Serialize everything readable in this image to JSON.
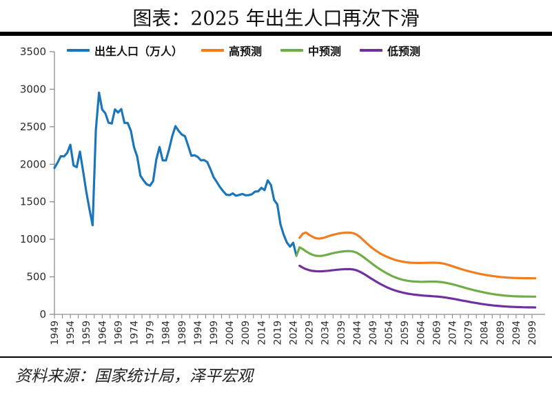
{
  "title": "图表：2025 年出生人口再次下滑",
  "source_note": "资料来源：国家统计局，泽平宏观",
  "colors": {
    "historical": "#1b75bb",
    "high_forecast": "#f07d1f",
    "mid_forecast": "#6fad46",
    "low_forecast": "#7030a0",
    "axis": "#8c8c8c",
    "rule": "#000000"
  },
  "chart_data": {
    "type": "line",
    "title": "图表：2025 年出生人口再次下滑",
    "xlabel": "",
    "ylabel": "",
    "grid": false,
    "legend_position": "top",
    "x_axis": {
      "min": 1949,
      "max": 2099,
      "label_step": 5,
      "minor_tick_step": 2.5,
      "tick_labels": [
        "1949",
        "1954",
        "1959",
        "1964",
        "1969",
        "1974",
        "1979",
        "1984",
        "1989",
        "1994",
        "1999",
        "2004",
        "2009",
        "2014",
        "2019",
        "2024",
        "2029",
        "2034",
        "2039",
        "2044",
        "2049",
        "2054",
        "2059",
        "2064",
        "2069",
        "2074",
        "2079",
        "2084",
        "2089",
        "2094",
        "2099"
      ]
    },
    "y_axis": {
      "min": 0,
      "max": 3500,
      "tick_step": 500,
      "tick_labels": [
        "0",
        "500",
        "1000",
        "1500",
        "2000",
        "2500",
        "3000",
        "3500"
      ]
    },
    "x_step_years": 1,
    "series": [
      {
        "name": "出生人口（万人）",
        "color": "#1b75bb",
        "start_year": 1949,
        "values": [
          1950,
          2023,
          2107,
          2105,
          2151,
          2260,
          1984,
          1961,
          2169,
          1909,
          1635,
          1402,
          1187,
          2460,
          2954,
          2729,
          2679,
          2554,
          2543,
          2731,
          2690,
          2736,
          2551,
          2550,
          2447,
          2226,
          2102,
          1849,
          1783,
          1733,
          1715,
          1776,
          2064,
          2230,
          2052,
          2050,
          2196,
          2374,
          2508,
          2445,
          2396,
          2374,
          2250,
          2113,
          2120,
          2098,
          2052,
          2057,
          2028,
          1934,
          1827,
          1765,
          1696,
          1641,
          1594,
          1588,
          1612,
          1581,
          1591,
          1604,
          1587,
          1588,
          1600,
          1635,
          1640,
          1687,
          1655,
          1786,
          1723,
          1523,
          1465,
          1200,
          1062,
          956,
          902,
          954,
          780
        ]
      },
      {
        "name": "高预测",
        "color": "#f07d1f",
        "start_year": 2026,
        "values": [
          1020,
          1075,
          1090,
          1060,
          1035,
          1015,
          1010,
          1015,
          1025,
          1040,
          1055,
          1065,
          1075,
          1082,
          1087,
          1090,
          1088,
          1080,
          1060,
          1030,
          990,
          950,
          912,
          878,
          848,
          820,
          795,
          775,
          757,
          740,
          726,
          714,
          705,
          698,
          692,
          688,
          686,
          685,
          685,
          686,
          687,
          688,
          688,
          687,
          684,
          678,
          668,
          655,
          641,
          627,
          613,
          600,
          588,
          576,
          565,
          555,
          545,
          536,
          528,
          521,
          514,
          508,
          503,
          498,
          494,
          491,
          488,
          486,
          484,
          483,
          482,
          481,
          481,
          480,
          480
        ]
      },
      {
        "name": "中预测",
        "color": "#6fad46",
        "start_year": 2025,
        "values": [
          780,
          893,
          870,
          840,
          815,
          795,
          782,
          778,
          780,
          788,
          798,
          810,
          820,
          828,
          835,
          840,
          843,
          842,
          835,
          820,
          795,
          765,
          733,
          700,
          668,
          637,
          608,
          581,
          556,
          533,
          512,
          494,
          478,
          465,
          455,
          447,
          441,
          437,
          435,
          434,
          434,
          435,
          436,
          436,
          435,
          432,
          427,
          420,
          411,
          401,
          390,
          378,
          366,
          354,
          342,
          331,
          320,
          310,
          300,
          291,
          283,
          275,
          268,
          262,
          257,
          252,
          248,
          245,
          242,
          240,
          239,
          238,
          237,
          237,
          236,
          236
        ]
      },
      {
        "name": "低预测",
        "color": "#7030a0",
        "start_year": 2026,
        "values": [
          648,
          622,
          603,
          589,
          580,
          575,
          573,
          574,
          577,
          581,
          586,
          591,
          595,
          599,
          602,
          603,
          602,
          597,
          585,
          567,
          544,
          518,
          491,
          464,
          438,
          413,
          390,
          369,
          350,
          333,
          318,
          305,
          294,
          284,
          276,
          269,
          263,
          258,
          254,
          250,
          247,
          244,
          241,
          238,
          234,
          229,
          223,
          216,
          209,
          201,
          193,
          185,
          177,
          169,
          161,
          154,
          147,
          140,
          134,
          128,
          123,
          118,
          114,
          110,
          107,
          104,
          101,
          99,
          97,
          96,
          95,
          94,
          93,
          93,
          92
        ]
      }
    ]
  }
}
